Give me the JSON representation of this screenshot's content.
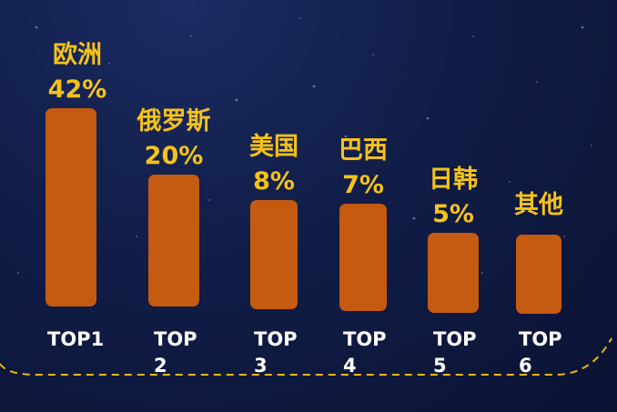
{
  "colors": {
    "bar": "#c55a11",
    "label": "#f6c21a",
    "tick": "#ffffff",
    "background": "#111d47",
    "dashed_line": "#f2b705"
  },
  "chart_data": {
    "type": "bar",
    "title": "",
    "xlabel": "",
    "ylabel": "",
    "categories": [
      "欧洲",
      "俄罗斯",
      "美国",
      "巴西",
      "日韩",
      "其他"
    ],
    "values": [
      42,
      20,
      8,
      7,
      5,
      null
    ],
    "value_labels": [
      "42%",
      "20%",
      "8%",
      "7%",
      "5%",
      ""
    ],
    "tick_labels": [
      [
        "TOP1"
      ],
      [
        "TOP",
        "2"
      ],
      [
        "TOP",
        "3"
      ],
      [
        "TOP",
        "4"
      ],
      [
        "TOP",
        "5"
      ],
      [
        "TOP",
        "6"
      ]
    ],
    "value_unit": "%",
    "grid": false,
    "legend": "none"
  }
}
